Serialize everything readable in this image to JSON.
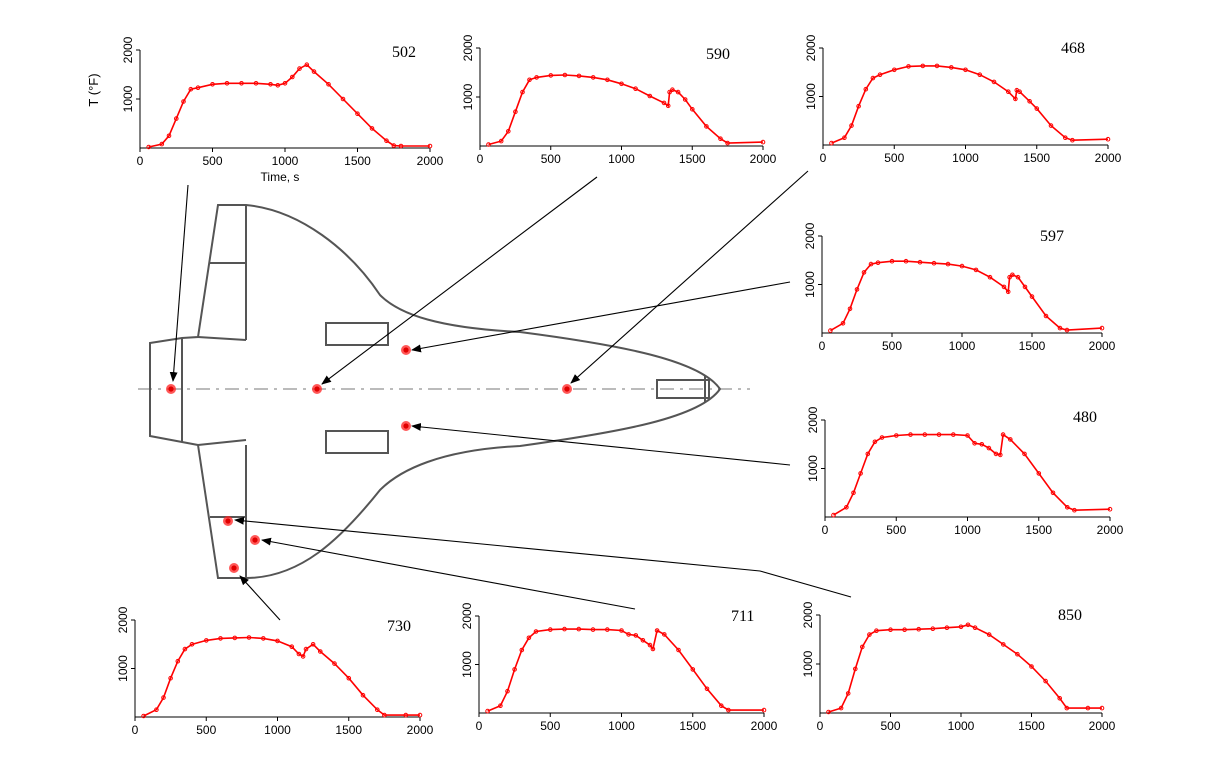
{
  "colors": {
    "curve": "#ff0000",
    "sensor": "#ff2020",
    "axis": "#000000",
    "outline": "#555555"
  },
  "chart_data": [
    {
      "type": "line",
      "id": "502",
      "label": "502",
      "xlabel": "Time, s",
      "ylabel": "T (°F)",
      "xlim": [
        0,
        2000
      ],
      "ylim": [
        0,
        2000
      ],
      "xticks": [
        0,
        500,
        1000,
        1500,
        2000
      ],
      "yticks": [
        1000,
        2000
      ],
      "x": [
        60,
        150,
        200,
        250,
        300,
        350,
        400,
        500,
        600,
        700,
        800,
        900,
        950,
        1000,
        1050,
        1100,
        1150,
        1200,
        1300,
        1400,
        1500,
        1600,
        1700,
        1750,
        1800,
        2000
      ],
      "y": [
        20,
        80,
        250,
        600,
        950,
        1200,
        1230,
        1300,
        1320,
        1320,
        1320,
        1300,
        1280,
        1320,
        1450,
        1620,
        1700,
        1560,
        1300,
        1000,
        700,
        400,
        150,
        50,
        40,
        40
      ]
    },
    {
      "type": "line",
      "id": "590",
      "label": "590",
      "xlabel": "",
      "ylabel": "",
      "xlim": [
        0,
        2000
      ],
      "ylim": [
        0,
        2000
      ],
      "xticks": [
        0,
        500,
        1000,
        1500,
        2000
      ],
      "yticks": [
        1000,
        2000
      ],
      "x": [
        60,
        150,
        200,
        250,
        300,
        350,
        400,
        500,
        600,
        700,
        800,
        900,
        1000,
        1100,
        1200,
        1300,
        1330,
        1340,
        1360,
        1400,
        1450,
        1500,
        1600,
        1700,
        1750,
        2000
      ],
      "y": [
        30,
        100,
        300,
        700,
        1100,
        1350,
        1400,
        1440,
        1450,
        1430,
        1400,
        1350,
        1270,
        1170,
        1020,
        880,
        820,
        1100,
        1150,
        1100,
        950,
        750,
        400,
        150,
        60,
        80
      ]
    },
    {
      "type": "line",
      "id": "468",
      "label": "468",
      "xlabel": "",
      "ylabel": "",
      "xlim": [
        0,
        2000
      ],
      "ylim": [
        0,
        2000
      ],
      "xticks": [
        0,
        500,
        1000,
        1500,
        2000
      ],
      "yticks": [
        1000,
        2000
      ],
      "x": [
        60,
        150,
        200,
        250,
        300,
        350,
        400,
        500,
        600,
        700,
        800,
        900,
        1000,
        1100,
        1200,
        1300,
        1350,
        1360,
        1380,
        1450,
        1500,
        1600,
        1700,
        1750,
        2000
      ],
      "y": [
        40,
        150,
        400,
        800,
        1150,
        1380,
        1450,
        1550,
        1620,
        1630,
        1630,
        1600,
        1550,
        1450,
        1300,
        1100,
        950,
        1130,
        1100,
        900,
        750,
        400,
        150,
        100,
        120
      ]
    },
    {
      "type": "line",
      "id": "597",
      "label": "597",
      "xlabel": "",
      "ylabel": "",
      "xlim": [
        0,
        2000
      ],
      "ylim": [
        0,
        2000
      ],
      "xticks": [
        0,
        500,
        1000,
        1500,
        2000
      ],
      "yticks": [
        1000,
        2000
      ],
      "x": [
        60,
        150,
        200,
        250,
        300,
        350,
        400,
        500,
        600,
        700,
        800,
        900,
        1000,
        1100,
        1200,
        1300,
        1330,
        1340,
        1360,
        1400,
        1450,
        1500,
        1600,
        1700,
        1750,
        2000
      ],
      "y": [
        50,
        200,
        500,
        900,
        1250,
        1420,
        1450,
        1480,
        1480,
        1460,
        1440,
        1420,
        1380,
        1300,
        1150,
        950,
        850,
        1150,
        1200,
        1150,
        950,
        750,
        350,
        100,
        60,
        100
      ]
    },
    {
      "type": "line",
      "id": "480",
      "label": "480",
      "xlabel": "",
      "ylabel": "",
      "xlim": [
        0,
        2000
      ],
      "ylim": [
        0,
        2000
      ],
      "xticks": [
        0,
        500,
        1000,
        1500,
        2000
      ],
      "yticks": [
        1000,
        2000
      ],
      "x": [
        60,
        150,
        200,
        250,
        300,
        350,
        400,
        500,
        600,
        700,
        800,
        900,
        1000,
        1050,
        1100,
        1150,
        1200,
        1230,
        1250,
        1300,
        1400,
        1500,
        1600,
        1700,
        1750,
        2000
      ],
      "y": [
        40,
        200,
        500,
        900,
        1300,
        1550,
        1640,
        1680,
        1700,
        1700,
        1700,
        1700,
        1680,
        1520,
        1500,
        1420,
        1300,
        1280,
        1700,
        1600,
        1300,
        900,
        500,
        200,
        140,
        160
      ]
    },
    {
      "type": "line",
      "id": "730",
      "label": "730",
      "xlabel": "",
      "ylabel": "",
      "xlim": [
        0,
        2000
      ],
      "ylim": [
        0,
        2000
      ],
      "xticks": [
        0,
        500,
        1000,
        1500,
        2000
      ],
      "yticks": [
        1000,
        2000
      ],
      "x": [
        60,
        150,
        200,
        250,
        300,
        350,
        400,
        500,
        600,
        700,
        800,
        900,
        1000,
        1100,
        1150,
        1180,
        1200,
        1250,
        1300,
        1400,
        1500,
        1600,
        1700,
        1750,
        1900,
        2000
      ],
      "y": [
        20,
        150,
        400,
        800,
        1150,
        1400,
        1500,
        1580,
        1620,
        1630,
        1640,
        1620,
        1570,
        1450,
        1300,
        1250,
        1400,
        1500,
        1350,
        1100,
        800,
        450,
        150,
        40,
        40,
        40
      ]
    },
    {
      "type": "line",
      "id": "711",
      "label": "711",
      "xlabel": "",
      "ylabel": "",
      "xlim": [
        0,
        2000
      ],
      "ylim": [
        0,
        2000
      ],
      "xticks": [
        0,
        500,
        1000,
        1500,
        2000
      ],
      "yticks": [
        1000,
        2000
      ],
      "x": [
        60,
        150,
        200,
        250,
        300,
        350,
        400,
        500,
        600,
        700,
        800,
        900,
        1000,
        1050,
        1100,
        1150,
        1200,
        1220,
        1250,
        1300,
        1400,
        1500,
        1600,
        1700,
        1750,
        2000
      ],
      "y": [
        40,
        150,
        450,
        900,
        1300,
        1550,
        1680,
        1720,
        1730,
        1730,
        1720,
        1720,
        1700,
        1620,
        1600,
        1500,
        1400,
        1320,
        1700,
        1620,
        1300,
        900,
        500,
        150,
        60,
        60
      ]
    },
    {
      "type": "line",
      "id": "850",
      "label": "850",
      "xlabel": "",
      "ylabel": "",
      "xlim": [
        0,
        2000
      ],
      "ylim": [
        0,
        2000
      ],
      "xticks": [
        0,
        500,
        1000,
        1500,
        2000
      ],
      "yticks": [
        1000,
        2000
      ],
      "x": [
        60,
        150,
        200,
        250,
        300,
        350,
        400,
        500,
        600,
        700,
        800,
        900,
        1000,
        1050,
        1100,
        1200,
        1300,
        1400,
        1500,
        1600,
        1700,
        1750,
        1900,
        2000
      ],
      "y": [
        20,
        100,
        400,
        900,
        1350,
        1600,
        1680,
        1700,
        1700,
        1710,
        1720,
        1740,
        1760,
        1800,
        1740,
        1600,
        1400,
        1200,
        950,
        650,
        300,
        100,
        100,
        100
      ]
    }
  ]
}
